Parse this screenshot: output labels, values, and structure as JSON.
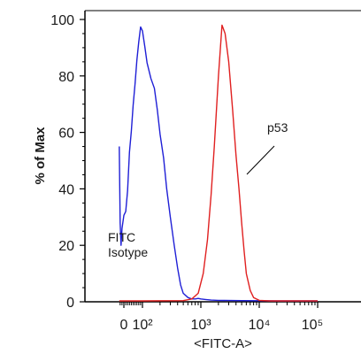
{
  "chart_data": {
    "type": "line",
    "xlabel": "<FITC-A>",
    "ylabel": "% of Max",
    "xscale": "biexponential",
    "xlim": [
      -25,
      100000
    ],
    "ylim": [
      0,
      100
    ],
    "x_tick_labels": [
      "0",
      "10²",
      "10³",
      "10⁴",
      "10⁵"
    ],
    "y_tick_labels": [
      "0",
      "20",
      "40",
      "60",
      "80",
      "100"
    ],
    "grid": false,
    "legend": "none",
    "annotations": [
      {
        "text_lines": [
          "FITC",
          "Isotype"
        ],
        "series": "FITC Isotype"
      },
      {
        "text_lines": [
          "p53"
        ],
        "series": "p53"
      }
    ],
    "series": [
      {
        "name": "FITC Isotype",
        "color": "#1f1fd6",
        "x": [
          -25,
          -20,
          -15,
          -10,
          0,
          10,
          20,
          30,
          40,
          50,
          60,
          70,
          80,
          90,
          100,
          110,
          120,
          140,
          160,
          180,
          200,
          230,
          260,
          300,
          350,
          400,
          450,
          500,
          600,
          700,
          800,
          900,
          1000,
          1200,
          1500,
          2000,
          5000,
          20000,
          100000
        ],
        "y": [
          55,
          28,
          20,
          26,
          30,
          32,
          40,
          52,
          60,
          70,
          78,
          85,
          92,
          98,
          95,
          90,
          85,
          80,
          75,
          68,
          60,
          50,
          40,
          30,
          20,
          12,
          6,
          3,
          1.5,
          1,
          1,
          1.2,
          1,
          0.8,
          0.6,
          0.5,
          0.4,
          0.3,
          0.3
        ]
      },
      {
        "name": "p53",
        "color": "#e02020",
        "x": [
          -25,
          100,
          500,
          700,
          900,
          1100,
          1300,
          1500,
          1700,
          2000,
          2300,
          2600,
          3000,
          3500,
          4000,
          4500,
          5000,
          5500,
          6000,
          7000,
          8000,
          10000,
          15000,
          30000,
          100000
        ],
        "y": [
          0.3,
          0.3,
          0.4,
          1,
          3,
          10,
          22,
          38,
          55,
          80,
          98,
          95,
          85,
          68,
          52,
          40,
          28,
          18,
          10,
          4,
          1.5,
          0.5,
          0.3,
          0.3,
          0.3
        ]
      }
    ]
  }
}
